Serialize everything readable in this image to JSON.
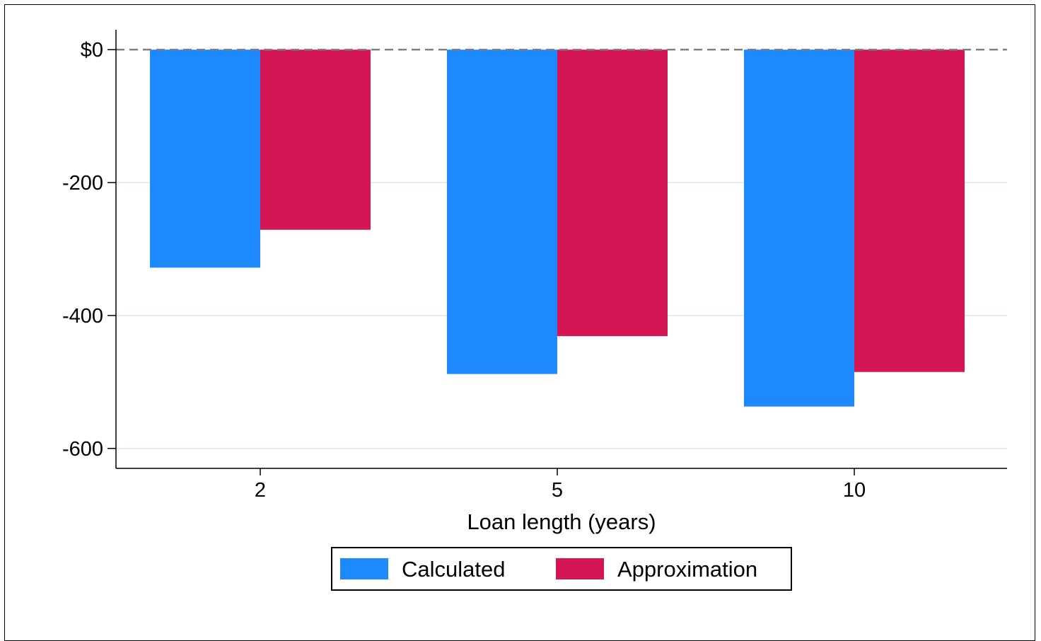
{
  "chart_data": {
    "type": "bar",
    "title": "",
    "xlabel": "Loan length (years)",
    "ylabel": "",
    "categories": [
      "2",
      "5",
      "10"
    ],
    "series": [
      {
        "name": "Calculated",
        "color": "#1E88FF",
        "values": [
          -328,
          -488,
          -537
        ]
      },
      {
        "name": "Approximation",
        "color": "#D51655",
        "values": [
          -271,
          -431,
          -485
        ]
      }
    ],
    "ylim": [
      -630,
      30
    ],
    "yticks": [
      {
        "value": 0,
        "label": "$0"
      },
      {
        "value": -200,
        "label": "-200"
      },
      {
        "value": -400,
        "label": "-400"
      },
      {
        "value": -600,
        "label": "-600"
      }
    ],
    "reference_line": {
      "value": 0,
      "style": "dashed",
      "color": "#808080"
    },
    "grid": true,
    "grid_color": "#E6EEF1",
    "legend_position": "bottom"
  }
}
